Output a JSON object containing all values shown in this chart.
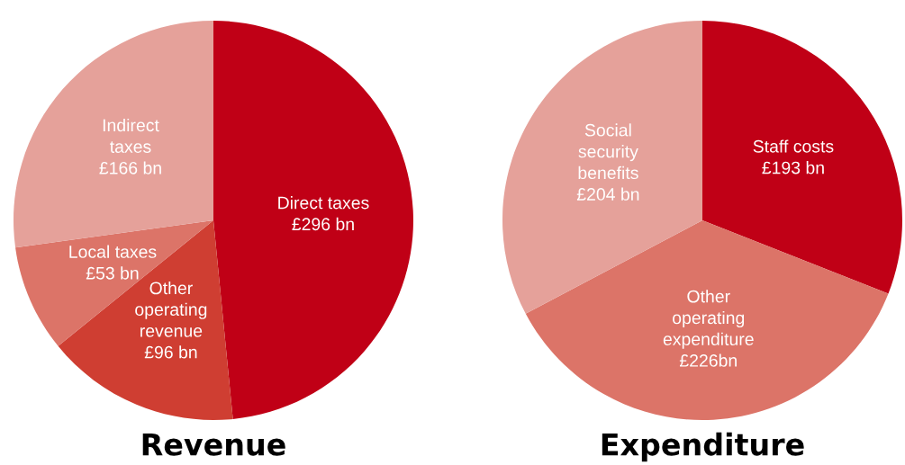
{
  "chart_data": [
    {
      "type": "pie",
      "title": "Revenue",
      "categories": [
        "Direct taxes",
        "Other\noperating\nrevenue",
        "Local taxes",
        "Indirect\ntaxes"
      ],
      "values": [
        296,
        96,
        53,
        166
      ],
      "value_labels": [
        "£296 bn",
        "£96 bn",
        "£53 bn",
        "£166 bn"
      ],
      "colors": [
        "#c00016",
        "#cf3e32",
        "#dc7468",
        "#e5a19a"
      ]
    },
    {
      "type": "pie",
      "title": "Expenditure",
      "categories": [
        "Staff costs",
        "Other\noperating\nexpenditure",
        "Social\nsecurity\nbenefits"
      ],
      "values": [
        193,
        226,
        204
      ],
      "value_labels": [
        "£193 bn",
        "£226bn",
        "£204 bn"
      ],
      "colors": [
        "#c00016",
        "#dc7468",
        "#e5a19a"
      ]
    }
  ]
}
